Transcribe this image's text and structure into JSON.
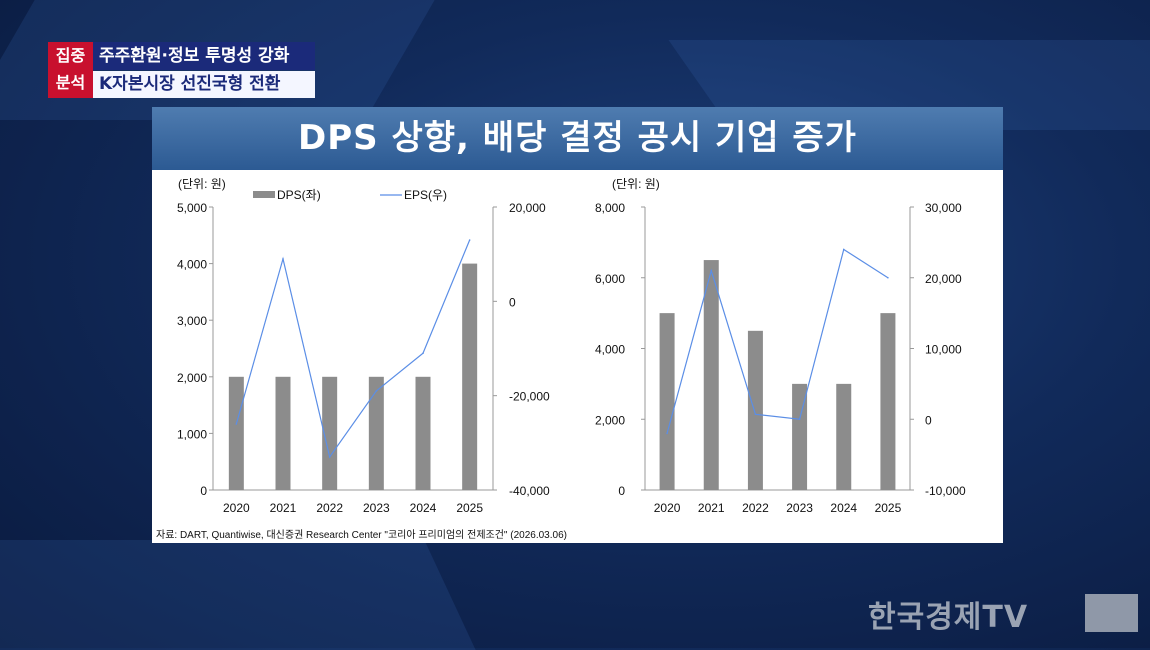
{
  "header": {
    "badge": [
      "집중",
      "분석"
    ],
    "subtitle1": "주주환원·정보 투명성 강화",
    "subtitle2": "K자본시장 선진국형 전환",
    "title": "DPS 상향, 배당 결정 공시 기업 증가"
  },
  "source": "자료: DART, Quantiwise, 대신증권 Research Center \"코리아 프리미엄의 전제조건\" (2026.03.06)",
  "logo": "한국경제TV",
  "colors": {
    "bar": "#8c8c8c",
    "line": "#5b8ee6"
  },
  "chart_data": [
    {
      "type": "bar+line",
      "unit_label": "(단위: 원)",
      "legend": [
        "DPS(좌)",
        "EPS(우)"
      ],
      "legend_position": "top",
      "categories": [
        "2020",
        "2021",
        "2022",
        "2023",
        "2024",
        "2025"
      ],
      "series": [
        {
          "name": "DPS(좌)",
          "type": "bar",
          "axis": "left",
          "values": [
            2000,
            2000,
            2000,
            2000,
            2000,
            4000
          ]
        },
        {
          "name": "EPS(우)",
          "type": "line",
          "axis": "right",
          "values": [
            -26000,
            9000,
            -33000,
            -19000,
            -11000,
            13000
          ]
        }
      ],
      "ylim_left": [
        0,
        5000
      ],
      "yticks_left": [
        0,
        1000,
        2000,
        3000,
        4000,
        5000
      ],
      "ytick_labels_left": [
        "0",
        "1,000",
        "2,000",
        "3,000",
        "4,000",
        "5,000"
      ],
      "ylim_right": [
        -40000,
        20000
      ],
      "yticks_right": [
        -40000,
        -20000,
        0,
        20000
      ],
      "ytick_labels_right": [
        "-40,000",
        "-20,000",
        "0",
        "20,000"
      ]
    },
    {
      "type": "bar+line",
      "unit_label": "(단위: 원)",
      "categories": [
        "2020",
        "2021",
        "2022",
        "2023",
        "2024",
        "2025"
      ],
      "series": [
        {
          "name": "DPS",
          "type": "bar",
          "axis": "left",
          "values": [
            5000,
            6500,
            4500,
            3000,
            3000,
            5000
          ]
        },
        {
          "name": "EPS",
          "type": "line",
          "axis": "right",
          "values": [
            -2000,
            21000,
            700,
            0,
            24000,
            20000
          ]
        }
      ],
      "ylim_left": [
        0,
        8000
      ],
      "yticks_left": [
        0,
        2000,
        4000,
        6000,
        8000
      ],
      "ytick_labels_left": [
        "0",
        "2,000",
        "4,000",
        "6,000",
        "8,000"
      ],
      "ylim_right": [
        -10000,
        30000
      ],
      "yticks_right": [
        -10000,
        0,
        10000,
        20000,
        30000
      ],
      "ytick_labels_right": [
        "-10,000",
        "0",
        "10,000",
        "20,000",
        "30,000"
      ]
    }
  ]
}
